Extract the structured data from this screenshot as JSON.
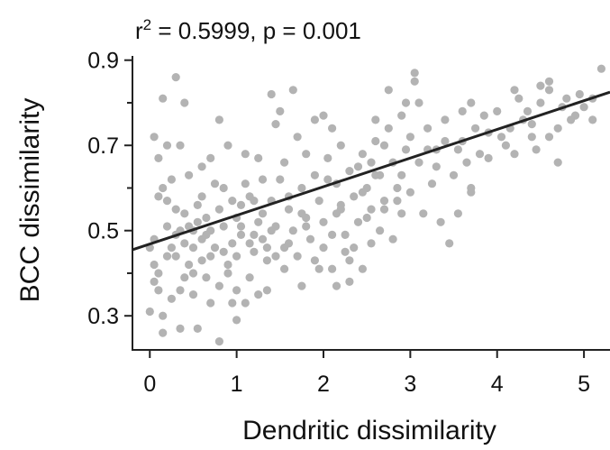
{
  "chart_data": {
    "type": "scatter",
    "annotation": {
      "r_symbol": "r",
      "r_exponent": "2",
      "text": " = 0.5999, p = 0.001"
    },
    "xlabel": "Dendritic dissimilarity",
    "ylabel": "BCC dissimilarity",
    "xlim": [
      -0.2,
      5.3
    ],
    "ylim": [
      0.22,
      0.91
    ],
    "x_ticks": [
      {
        "value": 0,
        "label": "0"
      },
      {
        "value": 1,
        "label": "1"
      },
      {
        "value": 2,
        "label": "2"
      },
      {
        "value": 3,
        "label": "3"
      },
      {
        "value": 4,
        "label": "4"
      },
      {
        "value": 5,
        "label": "5"
      }
    ],
    "y_ticks": [
      {
        "value": 0.3,
        "label": "0.3"
      },
      {
        "value": 0.5,
        "label": "0.5"
      },
      {
        "value": 0.7,
        "label": "0.7"
      },
      {
        "value": 0.9,
        "label": "0.9"
      }
    ],
    "y_minor_ticks": [
      0.4,
      0.6,
      0.8
    ],
    "point_color": "#b3b3b3",
    "line_color": "#222222",
    "fit_line": {
      "x": [
        -0.2,
        5.3
      ],
      "y": [
        0.455,
        0.825
      ]
    },
    "points": [
      [
        0.0,
        0.31
      ],
      [
        0.05,
        0.42
      ],
      [
        0.05,
        0.38
      ],
      [
        0.1,
        0.4
      ],
      [
        0.1,
        0.58
      ],
      [
        0.15,
        0.6
      ],
      [
        0.2,
        0.44
      ],
      [
        0.2,
        0.57
      ],
      [
        0.25,
        0.62
      ],
      [
        0.3,
        0.49
      ],
      [
        0.3,
        0.55
      ],
      [
        0.35,
        0.5
      ],
      [
        0.35,
        0.36
      ],
      [
        0.4,
        0.47
      ],
      [
        0.4,
        0.54
      ],
      [
        0.45,
        0.42
      ],
      [
        0.5,
        0.46
      ],
      [
        0.5,
        0.4
      ],
      [
        0.55,
        0.52
      ],
      [
        0.6,
        0.48
      ],
      [
        0.6,
        0.43
      ],
      [
        0.65,
        0.39
      ],
      [
        0.7,
        0.5
      ],
      [
        0.75,
        0.46
      ],
      [
        0.8,
        0.55
      ],
      [
        0.85,
        0.51
      ],
      [
        0.9,
        0.42
      ],
      [
        0.95,
        0.47
      ],
      [
        1.0,
        0.53
      ],
      [
        1.0,
        0.44
      ],
      [
        1.05,
        0.49
      ],
      [
        1.1,
        0.33
      ],
      [
        1.15,
        0.58
      ],
      [
        1.2,
        0.45
      ],
      [
        1.25,
        0.52
      ],
      [
        1.3,
        0.48
      ],
      [
        1.35,
        0.43
      ],
      [
        1.4,
        0.57
      ],
      [
        1.45,
        0.51
      ],
      [
        1.5,
        0.62
      ],
      [
        1.55,
        0.46
      ],
      [
        1.6,
        0.55
      ],
      [
        1.65,
        0.5
      ],
      [
        1.7,
        0.44
      ],
      [
        1.75,
        0.6
      ],
      [
        1.8,
        0.53
      ],
      [
        1.85,
        0.48
      ],
      [
        1.9,
        0.63
      ],
      [
        1.95,
        0.57
      ],
      [
        2.0,
        0.52
      ],
      [
        2.05,
        0.67
      ],
      [
        2.1,
        0.49
      ],
      [
        2.15,
        0.61
      ],
      [
        2.2,
        0.56
      ],
      [
        2.25,
        0.45
      ],
      [
        2.3,
        0.64
      ],
      [
        2.35,
        0.58
      ],
      [
        2.4,
        0.52
      ],
      [
        2.45,
        0.68
      ],
      [
        2.5,
        0.6
      ],
      [
        2.55,
        0.55
      ],
      [
        2.6,
        0.71
      ],
      [
        2.65,
        0.63
      ],
      [
        2.7,
        0.57
      ],
      [
        2.75,
        0.74
      ],
      [
        2.8,
        0.66
      ],
      [
        2.85,
        0.6
      ],
      [
        2.9,
        0.77
      ],
      [
        2.95,
        0.69
      ],
      [
        3.0,
        0.72
      ],
      [
        3.1,
        0.66
      ],
      [
        3.2,
        0.74
      ],
      [
        3.3,
        0.69
      ],
      [
        3.4,
        0.76
      ],
      [
        3.5,
        0.63
      ],
      [
        3.6,
        0.71
      ],
      [
        3.7,
        0.8
      ],
      [
        3.8,
        0.68
      ],
      [
        3.9,
        0.73
      ],
      [
        4.0,
        0.78
      ],
      [
        4.1,
        0.7
      ],
      [
        4.2,
        0.83
      ],
      [
        4.3,
        0.76
      ],
      [
        4.4,
        0.72
      ],
      [
        4.5,
        0.8
      ],
      [
        4.6,
        0.85
      ],
      [
        4.7,
        0.74
      ],
      [
        4.8,
        0.81
      ],
      [
        4.9,
        0.77
      ],
      [
        5.0,
        0.79
      ],
      [
        5.1,
        0.76
      ],
      [
        5.2,
        0.88
      ],
      [
        0.15,
        0.81
      ],
      [
        0.3,
        0.86
      ],
      [
        0.4,
        0.8
      ],
      [
        0.2,
        0.7
      ],
      [
        0.45,
        0.63
      ],
      [
        0.6,
        0.65
      ],
      [
        0.7,
        0.67
      ],
      [
        0.8,
        0.76
      ],
      [
        0.9,
        0.7
      ],
      [
        1.4,
        0.82
      ],
      [
        1.45,
        0.75
      ],
      [
        1.5,
        0.78
      ],
      [
        1.65,
        0.83
      ],
      [
        1.7,
        0.72
      ],
      [
        1.9,
        0.76
      ],
      [
        2.0,
        0.77
      ],
      [
        2.1,
        0.74
      ],
      [
        2.2,
        0.7
      ],
      [
        2.6,
        0.76
      ],
      [
        2.75,
        0.83
      ],
      [
        3.05,
        0.87
      ],
      [
        3.05,
        0.85
      ],
      [
        3.1,
        0.8
      ],
      [
        2.95,
        0.8
      ],
      [
        1.2,
        0.57
      ],
      [
        1.1,
        0.61
      ],
      [
        1.3,
        0.62
      ],
      [
        1.25,
        0.67
      ],
      [
        1.1,
        0.68
      ],
      [
        0.85,
        0.6
      ],
      [
        0.75,
        0.61
      ],
      [
        0.1,
        0.67
      ],
      [
        0.05,
        0.72
      ],
      [
        0.25,
        0.34
      ],
      [
        0.15,
        0.3
      ],
      [
        0.35,
        0.27
      ],
      [
        0.5,
        0.35
      ],
      [
        0.7,
        0.33
      ],
      [
        0.8,
        0.37
      ],
      [
        0.9,
        0.4
      ],
      [
        1.0,
        0.36
      ],
      [
        1.15,
        0.39
      ],
      [
        1.35,
        0.36
      ],
      [
        1.55,
        0.41
      ],
      [
        1.75,
        0.37
      ],
      [
        1.95,
        0.41
      ],
      [
        2.15,
        0.37
      ],
      [
        2.3,
        0.43
      ],
      [
        2.45,
        0.41
      ],
      [
        2.55,
        0.47
      ],
      [
        2.65,
        0.5
      ],
      [
        2.8,
        0.48
      ],
      [
        2.9,
        0.54
      ],
      [
        3.15,
        0.54
      ],
      [
        3.35,
        0.52
      ],
      [
        3.45,
        0.47
      ],
      [
        3.55,
        0.54
      ],
      [
        3.7,
        0.59
      ],
      [
        0.55,
        0.27
      ],
      [
        0.15,
        0.26
      ],
      [
        0.8,
        0.24
      ],
      [
        1.0,
        0.29
      ],
      [
        0.2,
        0.51
      ],
      [
        0.25,
        0.46
      ],
      [
        0.55,
        0.56
      ],
      [
        0.65,
        0.53
      ],
      [
        0.95,
        0.57
      ],
      [
        1.05,
        0.51
      ],
      [
        1.2,
        0.49
      ],
      [
        1.3,
        0.54
      ],
      [
        1.4,
        0.5
      ],
      [
        1.6,
        0.47
      ],
      [
        1.8,
        0.51
      ],
      [
        2.0,
        0.46
      ],
      [
        2.25,
        0.49
      ],
      [
        2.35,
        0.46
      ],
      [
        2.5,
        0.53
      ],
      [
        2.7,
        0.55
      ],
      [
        2.85,
        0.57
      ],
      [
        3.0,
        0.59
      ],
      [
        3.25,
        0.61
      ],
      [
        3.3,
        0.65
      ],
      [
        3.55,
        0.69
      ],
      [
        3.75,
        0.74
      ],
      [
        3.9,
        0.67
      ],
      [
        4.05,
        0.72
      ],
      [
        4.15,
        0.74
      ],
      [
        4.25,
        0.81
      ],
      [
        4.35,
        0.78
      ],
      [
        4.45,
        0.69
      ],
      [
        4.6,
        0.83
      ],
      [
        4.75,
        0.79
      ],
      [
        4.85,
        0.76
      ],
      [
        4.95,
        0.82
      ],
      [
        0.35,
        0.7
      ],
      [
        0.6,
        0.58
      ],
      [
        1.55,
        0.66
      ],
      [
        1.8,
        0.68
      ],
      [
        2.05,
        0.62
      ],
      [
        2.4,
        0.65
      ],
      [
        2.6,
        0.63
      ],
      [
        2.9,
        0.63
      ],
      [
        3.6,
        0.78
      ],
      [
        4.5,
        0.84
      ],
      [
        1.05,
        0.56
      ],
      [
        0.45,
        0.51
      ],
      [
        0.3,
        0.44
      ],
      [
        0.7,
        0.44
      ],
      [
        1.9,
        0.43
      ],
      [
        2.1,
        0.41
      ],
      [
        2.3,
        0.38
      ],
      [
        0.95,
        0.33
      ],
      [
        1.25,
        0.35
      ],
      [
        1.45,
        0.44
      ],
      [
        0.1,
        0.36
      ],
      [
        0.65,
        0.49
      ],
      [
        1.75,
        0.54
      ],
      [
        2.2,
        0.55
      ],
      [
        2.45,
        0.59
      ],
      [
        3.2,
        0.69
      ],
      [
        3.85,
        0.77
      ],
      [
        0.0,
        0.46
      ],
      [
        0.05,
        0.48
      ],
      [
        4.2,
        0.68
      ],
      [
        4.6,
        0.72
      ],
      [
        4.7,
        0.66
      ],
      [
        1.15,
        0.47
      ],
      [
        1.6,
        0.58
      ],
      [
        2.55,
        0.66
      ],
      [
        2.7,
        0.7
      ],
      [
        3.4,
        0.71
      ],
      [
        3.65,
        0.66
      ],
      [
        0.4,
        0.39
      ],
      [
        0.85,
        0.45
      ],
      [
        1.35,
        0.46
      ],
      [
        2.15,
        0.54
      ],
      [
        3.7,
        0.6
      ],
      [
        4.4,
        0.75
      ],
      [
        5.1,
        0.81
      ],
      [
        0.5,
        0.5
      ]
    ]
  }
}
